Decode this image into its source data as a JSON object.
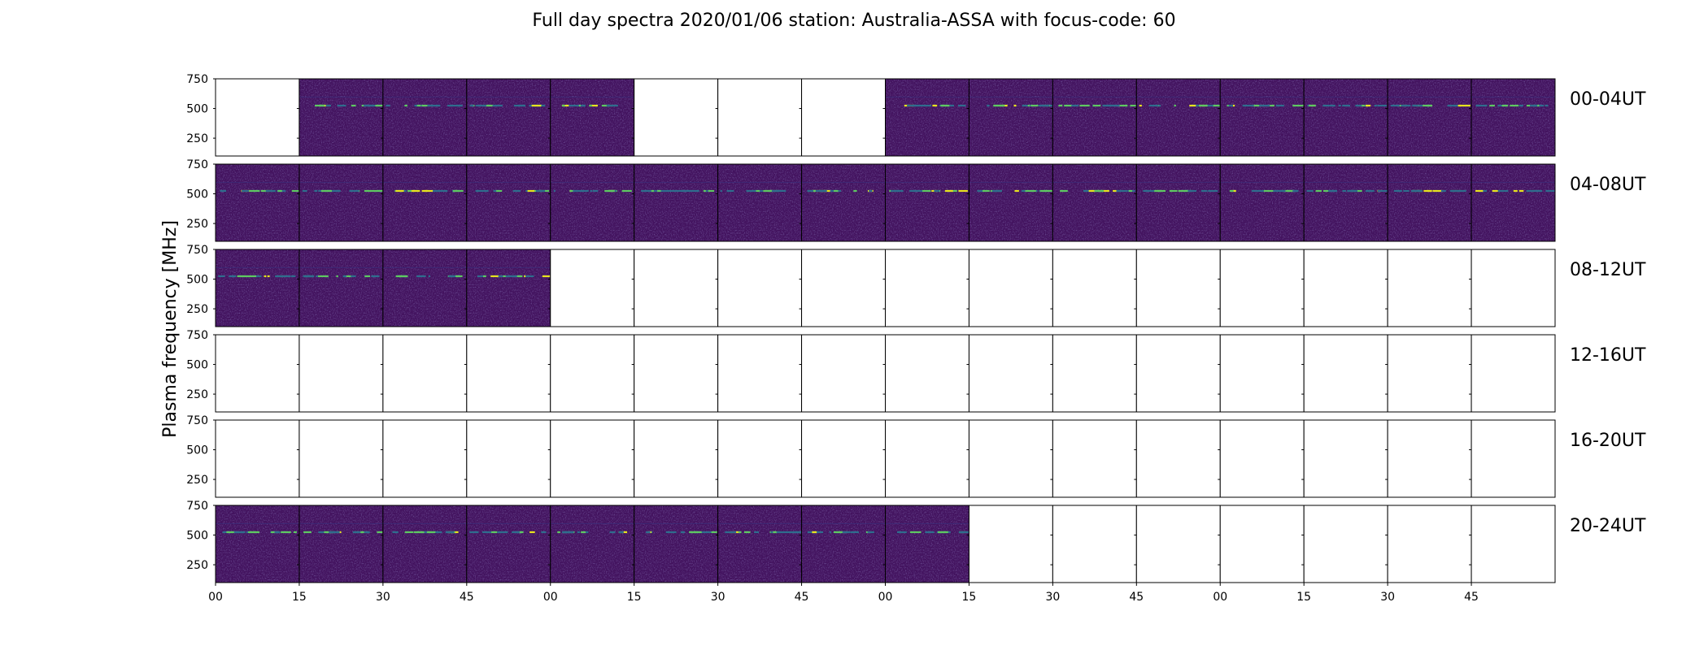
{
  "chart_data": {
    "type": "heatmap",
    "title": "Full day spectra 2020/01/06 station: Australia-ASSA with focus-code: 60",
    "ylabel": "Plasma frequency [MHz]",
    "xlabel": "",
    "y_ticks": [
      "750",
      "500",
      "250"
    ],
    "ylim": [
      100,
      750
    ],
    "x_tick_labels": [
      "00",
      "15",
      "30",
      "45",
      "00",
      "15",
      "30",
      "45",
      "00",
      "15",
      "30",
      "45",
      "00",
      "15",
      "30",
      "45"
    ],
    "colors": {
      "background": "#43135f",
      "noise": "#3a2d7a",
      "line_low": "#2f6d8e",
      "line_high": "#5ec962",
      "line_peak": "#e8e41e",
      "empty": "#ffffff"
    },
    "signal_band_mhz": 525,
    "rows": [
      {
        "label": "00-04UT",
        "panels_with_data": [
          0,
          1,
          1,
          1,
          1,
          0,
          0,
          0,
          1,
          1,
          1,
          1,
          1,
          1,
          1,
          1
        ]
      },
      {
        "label": "04-08UT",
        "panels_with_data": [
          1,
          1,
          1,
          1,
          1,
          1,
          1,
          1,
          1,
          1,
          1,
          1,
          1,
          1,
          1,
          1
        ]
      },
      {
        "label": "08-12UT",
        "panels_with_data": [
          1,
          1,
          1,
          1,
          0,
          0,
          0,
          0,
          0,
          0,
          0,
          0,
          0,
          0,
          0,
          0
        ]
      },
      {
        "label": "12-16UT",
        "panels_with_data": [
          0,
          0,
          0,
          0,
          0,
          0,
          0,
          0,
          0,
          0,
          0,
          0,
          0,
          0,
          0,
          0
        ]
      },
      {
        "label": "16-20UT",
        "panels_with_data": [
          0,
          0,
          0,
          0,
          0,
          0,
          0,
          0,
          0,
          0,
          0,
          0,
          0,
          0,
          0,
          0
        ]
      },
      {
        "label": "20-24UT",
        "panels_with_data": [
          1,
          1,
          1,
          1,
          1,
          1,
          1,
          1,
          1,
          0,
          0,
          0,
          0,
          0,
          0,
          0
        ]
      }
    ]
  }
}
